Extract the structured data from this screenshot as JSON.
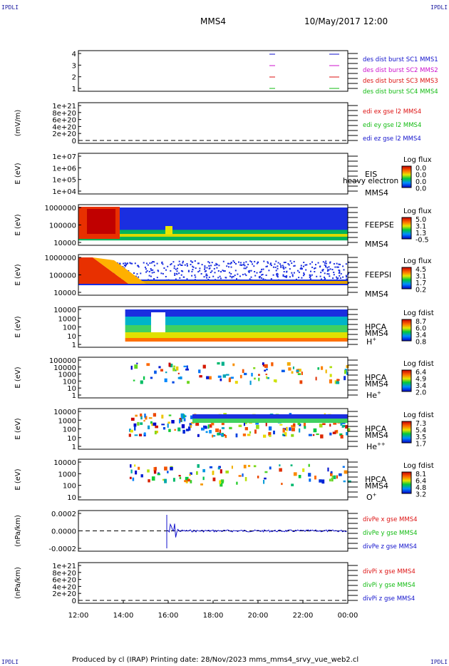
{
  "corners": {
    "tl": "IPDLI",
    "tr": "IPDLI",
    "bl": "IPDLI",
    "br": "IPDLI"
  },
  "header": {
    "title": "MMS4",
    "datetime": "10/May/2017 12:00"
  },
  "footer": {
    "text": "Produced by cl (IRAP)   Printing date: 28/Nov/2023   mms_mms4_srvy_vue_web2.cl"
  },
  "colors": {
    "red": "#dd1111",
    "green": "#11bb11",
    "blue": "#1111cc",
    "magenta": "#cc11cc"
  },
  "chart_data": {
    "type": "heatmap",
    "time_axis": {
      "range": [
        "12:00",
        "00:00"
      ],
      "ticks": [
        "12:00",
        "14:00",
        "16:00",
        "18:00",
        "20:00",
        "22:00",
        "00:00"
      ]
    },
    "panels": [
      {
        "id": "burst",
        "type": "line",
        "ylabel": "",
        "yticks": [
          "4",
          "3",
          "2",
          "1"
        ],
        "legend": [
          {
            "text": "des dist burst SC1 MMS1",
            "color": "#1111cc"
          },
          {
            "text": "des dist burst SC2 MMS2",
            "color": "#cc11cc"
          },
          {
            "text": "des dist burst SC3 MMS3",
            "color": "#dd1111"
          },
          {
            "text": "des dist burst SC4 MMS4",
            "color": "#11bb11"
          }
        ],
        "segments": [
          {
            "spacecraft": 4,
            "start": "20:35",
            "end": "20:45"
          },
          {
            "spacecraft": 4,
            "start": "23:15",
            "end": "23:35"
          }
        ]
      },
      {
        "id": "edi",
        "type": "line",
        "ylabel": "(mV/m)",
        "yticks": [
          "1e+21",
          "8e+20",
          "6e+20",
          "4e+20",
          "2e+20",
          "0"
        ],
        "legend": [
          {
            "text": "edi ex gse l2 MMS4",
            "color": "#dd1111"
          },
          {
            "text": "edi ey gse l2 MMS4",
            "color": "#11bb11"
          },
          {
            "text": "edi ez gse l2 MMS4",
            "color": "#1111cc"
          }
        ]
      },
      {
        "id": "eis",
        "type": "heatmap",
        "ylabel": "E (eV)",
        "yticks": [
          "1e+07",
          "1e+06",
          "1e+05",
          "1e+04"
        ],
        "labels": [
          "EIS",
          "MMS4"
        ],
        "overlay": "heavy electron tof",
        "colorbar": {
          "title": "Log flux",
          "ticks": [
            "0.0",
            "0.0",
            "0.0",
            "0.0"
          ]
        }
      },
      {
        "id": "feepse",
        "type": "heatmap",
        "ylabel": "E (eV)",
        "yticks": [
          "1000000",
          "100000",
          "10000"
        ],
        "labels": [
          "FEEPSE",
          "MMS4"
        ],
        "colorbar": {
          "title": "Log flux",
          "ticks": [
            "5.0",
            "3.1",
            "1.3",
            "-0.5"
          ]
        }
      },
      {
        "id": "feepsi",
        "type": "heatmap",
        "ylabel": "E (eV)",
        "yticks": [
          "1000000",
          "100000",
          "10000"
        ],
        "labels": [
          "FEEPSI",
          "MMS4"
        ],
        "colorbar": {
          "title": "Log flux",
          "ticks": [
            "4.5",
            "3.1",
            "1.7",
            "0.2"
          ]
        }
      },
      {
        "id": "hpca-h",
        "type": "heatmap",
        "ylabel": "E (eV)",
        "yticks": [
          "10000",
          "1000",
          "100",
          "10",
          "1"
        ],
        "labels": [
          "HPCA",
          "MMS4"
        ],
        "species": "H",
        "charge": "+",
        "colorbar": {
          "title": "Log fdist",
          "ticks": [
            "8.7",
            "6.0",
            "3.4",
            "0.8"
          ]
        }
      },
      {
        "id": "hpca-he",
        "type": "heatmap",
        "ylabel": "E (eV)",
        "yticks": [
          "100000",
          "10000",
          "1000",
          "100",
          "10",
          "1"
        ],
        "labels": [
          "HPCA",
          "MMS4"
        ],
        "species": "He",
        "charge": "+",
        "colorbar": {
          "title": "Log fdist",
          "ticks": [
            "6.4",
            "4.9",
            "3.4",
            "2.0"
          ]
        }
      },
      {
        "id": "hpca-he2",
        "type": "heatmap",
        "ylabel": "E (eV)",
        "yticks": [
          "10000",
          "1000",
          "100",
          "10",
          "1"
        ],
        "labels": [
          "HPCA",
          "MMS4"
        ],
        "species": "He",
        "charge": "++",
        "colorbar": {
          "title": "Log fdist",
          "ticks": [
            "7.3",
            "5.4",
            "3.5",
            "1.7"
          ]
        }
      },
      {
        "id": "hpca-o",
        "type": "heatmap",
        "ylabel": "E (eV)",
        "yticks": [
          "10000",
          "1000",
          "100",
          "10"
        ],
        "labels": [
          "HPCA",
          "MMS4"
        ],
        "species": "O",
        "charge": "+",
        "colorbar": {
          "title": "Log fdist",
          "ticks": [
            "8.1",
            "6.4",
            "4.8",
            "3.2"
          ]
        }
      },
      {
        "id": "divpe",
        "type": "line",
        "ylabel": "(nPa/km)",
        "yticks": [
          "0.0002",
          "0.0000",
          "-0.0002"
        ],
        "legend": [
          {
            "text": "divPe x gse MMS4",
            "color": "#dd1111"
          },
          {
            "text": "divPe y gse MMS4",
            "color": "#11bb11"
          },
          {
            "text": "divPe z gse MMS4",
            "color": "#1111cc"
          }
        ]
      },
      {
        "id": "divpi",
        "type": "line",
        "ylabel": "(nPa/km)",
        "yticks": [
          "1e+21",
          "8e+20",
          "6e+20",
          "4e+20",
          "2e+20",
          "0"
        ],
        "legend": [
          {
            "text": "divPi x gse MMS4",
            "color": "#dd1111"
          },
          {
            "text": "divPi y gse MMS4",
            "color": "#11bb11"
          },
          {
            "text": "divPi z gse MMS4",
            "color": "#1111cc"
          }
        ]
      }
    ]
  }
}
